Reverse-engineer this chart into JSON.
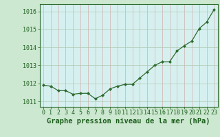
{
  "x": [
    0,
    1,
    2,
    3,
    4,
    5,
    6,
    7,
    8,
    9,
    10,
    11,
    12,
    13,
    14,
    15,
    16,
    17,
    18,
    19,
    20,
    21,
    22,
    23
  ],
  "y": [
    1011.9,
    1011.85,
    1011.6,
    1011.6,
    1011.4,
    1011.45,
    1011.45,
    1011.15,
    1011.35,
    1011.7,
    1011.85,
    1011.95,
    1011.95,
    1012.3,
    1012.65,
    1013.0,
    1013.2,
    1013.2,
    1013.8,
    1014.1,
    1014.35,
    1015.05,
    1015.4,
    1016.1
  ],
  "line_color": "#2d6a2d",
  "marker": "D",
  "marker_size": 2.0,
  "line_width": 0.9,
  "bg_color": "#cce8d0",
  "plot_bg_color": "#d6f0f0",
  "grid_color": "#b0c8b0",
  "xlabel": "Graphe pression niveau de la mer (hPa)",
  "xlabel_color": "#1a5c1a",
  "xlabel_fontsize": 7.5,
  "tick_color": "#1a5c1a",
  "tick_fontsize": 6,
  "ylim": [
    1010.7,
    1016.4
  ],
  "yticks": [
    1011,
    1012,
    1013,
    1014,
    1015,
    1016
  ],
  "xlim": [
    -0.5,
    23.5
  ],
  "xticks": [
    0,
    1,
    2,
    3,
    4,
    5,
    6,
    7,
    8,
    9,
    10,
    11,
    12,
    13,
    14,
    15,
    16,
    17,
    18,
    19,
    20,
    21,
    22,
    23
  ]
}
